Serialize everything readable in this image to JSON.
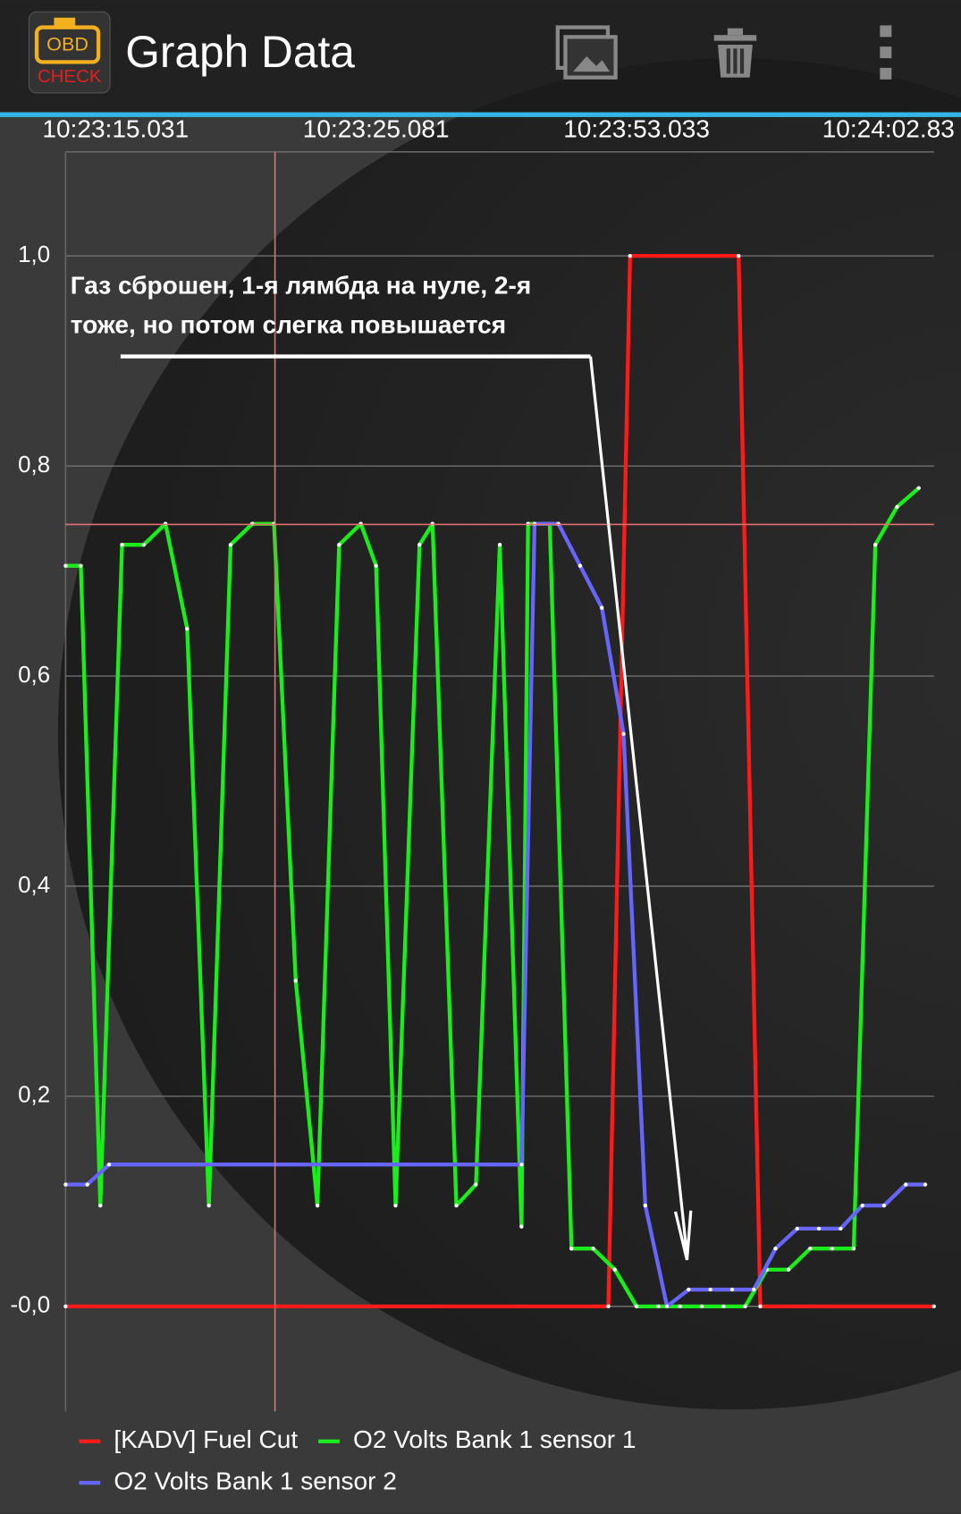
{
  "app_bar": {
    "title": "Graph Data"
  },
  "chart_data": {
    "type": "line",
    "annotation": [
      "Газ сброшен, 1-я лямбда на нуле, 2-я",
      "тоже, но потом слегка повышается"
    ],
    "xlim": [
      0,
      40
    ],
    "xticks": [
      {
        "value": 2.3,
        "label": "10:23:15.031"
      },
      {
        "value": 14.3,
        "label": "10:23:25.081"
      },
      {
        "value": 26.3,
        "label": "10:23:53.033"
      },
      {
        "value": 37.9,
        "label": "10:24:02.83"
      }
    ],
    "ylim": [
      -0.1,
      1.1
    ],
    "yticks": [
      {
        "value": 1.0,
        "label": "1,0"
      },
      {
        "value": 0.8,
        "label": "0,8"
      },
      {
        "value": 0.6,
        "label": "0,6"
      },
      {
        "value": 0.4,
        "label": "0,4"
      },
      {
        "value": 0.2,
        "label": "0,2"
      },
      {
        "value": 0,
        "label": "-0,0"
      }
    ],
    "grid": true,
    "series": [
      {
        "name": "[KADV] Fuel Cut",
        "color": "#ff1a1a",
        "x": [
          0,
          25,
          26,
          31,
          32,
          40
        ],
        "values": [
          0,
          0,
          1,
          1,
          0,
          0
        ]
      },
      {
        "name": "O2 Volts Bank 1 sensor 1",
        "color": "#1aee1a",
        "x": [
          0,
          0.7,
          1.6,
          2.6,
          3.6,
          4.6,
          5.6,
          6.6,
          7.6,
          8.6,
          9.6,
          10.6,
          11.6,
          12.6,
          13.6,
          14.3,
          15.2,
          16.3,
          16.9,
          18,
          18.9,
          20,
          21,
          21.3,
          22.3,
          23.3,
          24.3,
          25.3,
          26.3,
          27.3,
          28.3,
          29.3,
          30.3,
          31.3,
          32.3,
          33.3,
          34.3,
          35.3,
          36.3,
          37.3,
          38.3,
          39.3
        ],
        "values": [
          0.705,
          0.705,
          0.096,
          0.725,
          0.725,
          0.745,
          0.645,
          0.096,
          0.725,
          0.745,
          0.745,
          0.31,
          0.096,
          0.725,
          0.745,
          0.705,
          0.096,
          0.725,
          0.745,
          0.096,
          0.116,
          0.725,
          0.076,
          0.745,
          0.745,
          0.055,
          0.055,
          0.035,
          0,
          0,
          0,
          0,
          0,
          0,
          0.035,
          0.035,
          0.055,
          0.055,
          0.055,
          0.725,
          0.761,
          0.779
        ]
      },
      {
        "name": "O2 Volts Bank 1 sensor 2",
        "color": "#6666ff",
        "x": [
          0,
          1,
          2,
          21,
          21.6,
          22.7,
          23.7,
          24.7,
          25.7,
          26.7,
          27.7,
          28.7,
          29.7,
          30.7,
          31.7,
          32.7,
          33.7,
          34.7,
          35.7,
          36.7,
          37.7,
          38.7,
          39.6
        ],
        "values": [
          0.116,
          0.116,
          0.135,
          0.135,
          0.745,
          0.745,
          0.705,
          0.665,
          0.545,
          0.096,
          0,
          0.016,
          0.016,
          0.016,
          0.016,
          0.055,
          0.074,
          0.074,
          0.074,
          0.096,
          0.096,
          0.116,
          0.116
        ]
      }
    ]
  }
}
